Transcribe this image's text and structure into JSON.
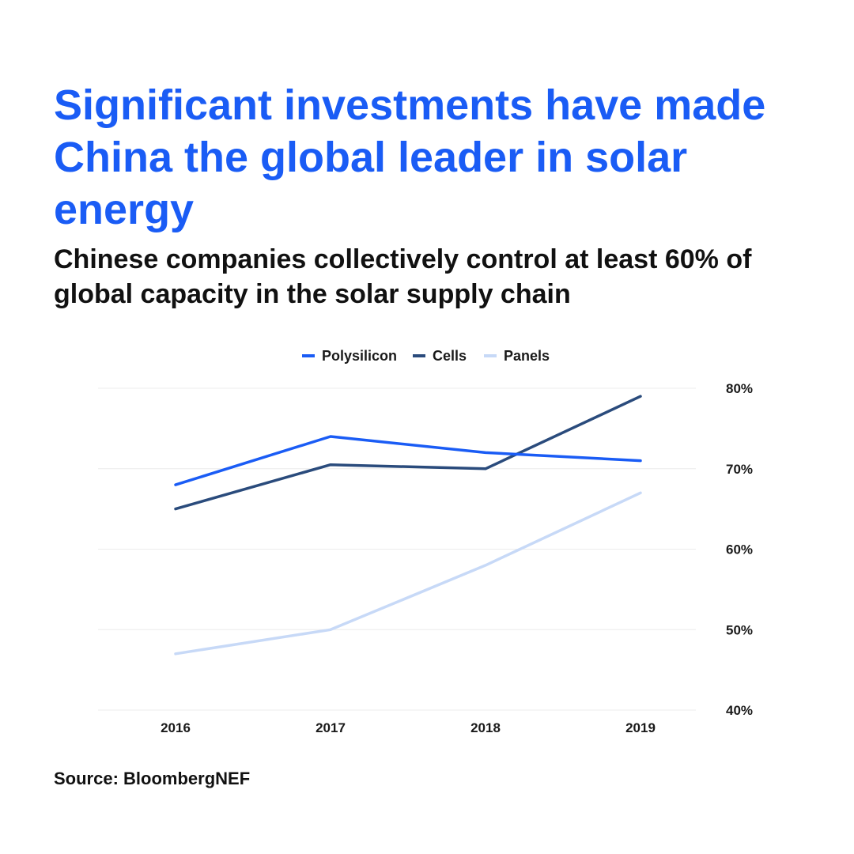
{
  "headline": "Significant investments have made China the global leader in solar energy",
  "subhead": "Chinese companies collectively control at least 60% of global capacity in the solar supply chain",
  "source": "Source: BloombergNEF",
  "colors": {
    "headline": "#1a5cf5",
    "text": "#111111",
    "grid": "#ececec"
  },
  "chart_data": {
    "type": "line",
    "title": "",
    "xlabel": "",
    "ylabel": "",
    "x": [
      "2016",
      "2017",
      "2018",
      "2019"
    ],
    "ylim": [
      40,
      80
    ],
    "yticks": [
      80,
      70,
      60,
      50,
      40
    ],
    "ytick_labels": [
      "80%",
      "70%",
      "60%",
      "50%",
      "40%"
    ],
    "grid": true,
    "y_axis_side": "right",
    "legend_position": "top-center",
    "series": [
      {
        "name": "Polysilicon",
        "color": "#1a5cf5",
        "values": [
          68,
          74,
          72,
          71
        ]
      },
      {
        "name": "Cells",
        "color": "#2a4b7c",
        "values": [
          65,
          70.5,
          70,
          79
        ]
      },
      {
        "name": "Panels",
        "color": "#c7d9f7",
        "values": [
          47,
          50,
          58,
          67
        ]
      }
    ]
  }
}
